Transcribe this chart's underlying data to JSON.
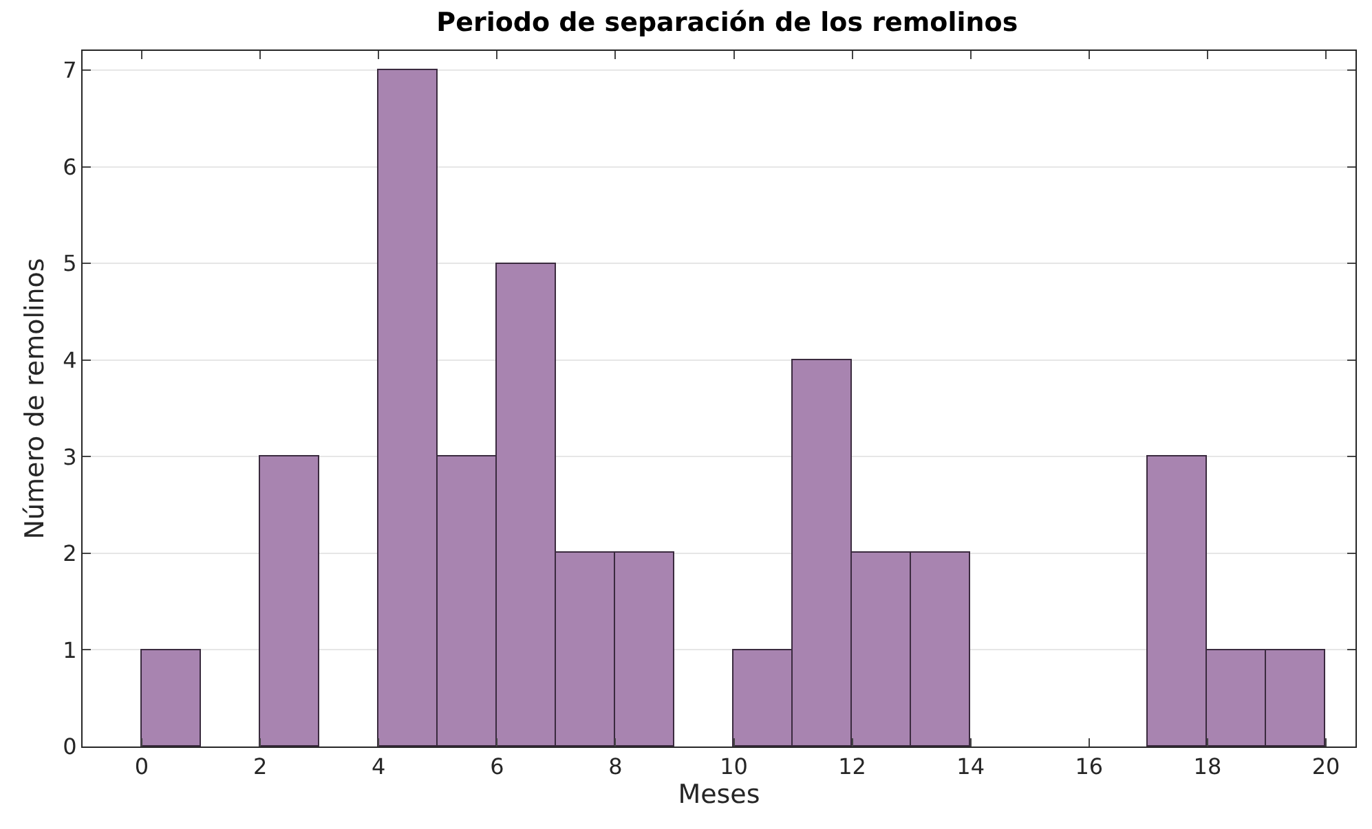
{
  "chart_data": {
    "type": "histogram",
    "title": "Periodo de separación de los remolinos",
    "xlabel": "Meses",
    "ylabel": "Número de remolinos",
    "bins": [
      0,
      1,
      2,
      3,
      4,
      5,
      6,
      7,
      8,
      9,
      10,
      11,
      12,
      13,
      14,
      15,
      16,
      17,
      18,
      19,
      20
    ],
    "values": [
      1,
      0,
      3,
      0,
      7,
      3,
      5,
      2,
      2,
      0,
      1,
      4,
      2,
      2,
      0,
      0,
      0,
      3,
      1,
      1
    ],
    "color": "#a884b0",
    "xlim": [
      -1,
      20.5
    ],
    "xticks": [
      0,
      2,
      4,
      6,
      8,
      10,
      12,
      14,
      16,
      18,
      20
    ],
    "ylim": [
      0,
      7.2
    ],
    "yticks": [
      0,
      1,
      2,
      3,
      4,
      5,
      6,
      7
    ],
    "grid": "y"
  }
}
